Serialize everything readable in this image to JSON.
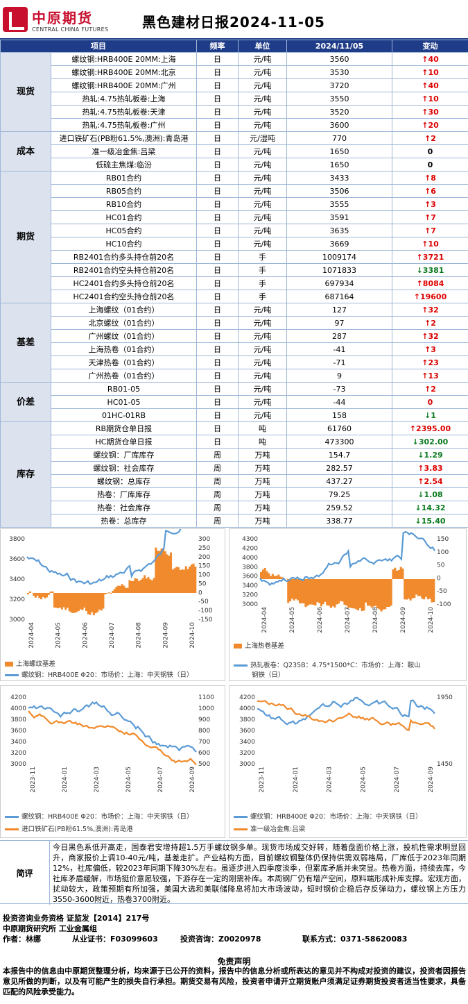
{
  "header": {
    "logo_cn": "中原期货",
    "logo_en": "CENTRAL CHINA FUTURES",
    "title": "黑色建材日报2024-11-05"
  },
  "table": {
    "headers": [
      "项目",
      "频率",
      "单位",
      "2024/11/05",
      "变动"
    ],
    "groups": [
      {
        "category": "现货",
        "rows": [
          {
            "item": "螺纹钢:HRB400E 20MM:上海",
            "freq": "日",
            "unit": "元/吨",
            "value": "3560",
            "change": "40",
            "dir": "up"
          },
          {
            "item": "螺纹钢:HRB400E 20MM:北京",
            "freq": "日",
            "unit": "元/吨",
            "value": "3530",
            "change": "10",
            "dir": "up"
          },
          {
            "item": "螺纹钢:HRB400E 20MM:广州",
            "freq": "日",
            "unit": "元/吨",
            "value": "3720",
            "change": "40",
            "dir": "up"
          },
          {
            "item": "热轧:4.75热轧板卷:上海",
            "freq": "日",
            "unit": "元/吨",
            "value": "3550",
            "change": "10",
            "dir": "up"
          },
          {
            "item": "热轧:4.75热轧板卷:天津",
            "freq": "日",
            "unit": "元/吨",
            "value": "3520",
            "change": "30",
            "dir": "up"
          },
          {
            "item": "热轧:4.75热轧板卷:广州",
            "freq": "日",
            "unit": "元/吨",
            "value": "3600",
            "change": "20",
            "dir": "up"
          }
        ]
      },
      {
        "category": "成本",
        "rows": [
          {
            "item": "进口铁矿石(PB粉61.5%,澳洲):青岛港",
            "freq": "日",
            "unit": "元/湿吨",
            "value": "770",
            "change": "2",
            "dir": "up"
          },
          {
            "item": "准一级冶金焦:吕梁",
            "freq": "日",
            "unit": "元/吨",
            "value": "1650",
            "change": "0",
            "dir": "flat"
          },
          {
            "item": "低硫主焦煤:临汾",
            "freq": "日",
            "unit": "元/吨",
            "value": "1650",
            "change": "0",
            "dir": "flat"
          }
        ]
      },
      {
        "category": "期货",
        "rows": [
          {
            "item": "RB01合约",
            "freq": "日",
            "unit": "元/吨",
            "value": "3433",
            "change": "8",
            "dir": "up"
          },
          {
            "item": "RB05合约",
            "freq": "日",
            "unit": "元/吨",
            "value": "3506",
            "change": "6",
            "dir": "up"
          },
          {
            "item": "RB10合约",
            "freq": "日",
            "unit": "元/吨",
            "value": "3555",
            "change": "3",
            "dir": "up"
          },
          {
            "item": "HC01合约",
            "freq": "日",
            "unit": "元/吨",
            "value": "3591",
            "change": "7",
            "dir": "up"
          },
          {
            "item": "HC05合约",
            "freq": "日",
            "unit": "元/吨",
            "value": "3635",
            "change": "7",
            "dir": "up"
          },
          {
            "item": "HC10合约",
            "freq": "日",
            "unit": "元/吨",
            "value": "3669",
            "change": "10",
            "dir": "up"
          },
          {
            "item": "RB2401合约多头持仓前20名",
            "freq": "日",
            "unit": "手",
            "value": "1009174",
            "change": "3721",
            "dir": "up"
          },
          {
            "item": "RB2401合约空头持仓前20名",
            "freq": "日",
            "unit": "手",
            "value": "1071833",
            "change": "3381",
            "dir": "down"
          },
          {
            "item": "HC2401合约多头持仓前20名",
            "freq": "日",
            "unit": "手",
            "value": "697934",
            "change": "8084",
            "dir": "up"
          },
          {
            "item": "HC2401合约空头持仓前20名",
            "freq": "日",
            "unit": "手",
            "value": "687164",
            "change": "19600",
            "dir": "up"
          }
        ]
      },
      {
        "category": "基差",
        "rows": [
          {
            "item": "上海螺纹（01合约）",
            "freq": "日",
            "unit": "元/吨",
            "value": "127",
            "change": "32",
            "dir": "up"
          },
          {
            "item": "北京螺纹（01合约）",
            "freq": "日",
            "unit": "元/吨",
            "value": "97",
            "change": "2",
            "dir": "up"
          },
          {
            "item": "广州螺纹（01合约）",
            "freq": "日",
            "unit": "元/吨",
            "value": "287",
            "change": "32",
            "dir": "up"
          },
          {
            "item": "上海热卷（01合约）",
            "freq": "日",
            "unit": "元/吨",
            "value": "-41",
            "change": "3",
            "dir": "up"
          },
          {
            "item": "天津热卷（01合约）",
            "freq": "日",
            "unit": "元/吨",
            "value": "-71",
            "change": "23",
            "dir": "up"
          },
          {
            "item": "广州热卷（01合约）",
            "freq": "日",
            "unit": "元/吨",
            "value": "9",
            "change": "13",
            "dir": "up"
          }
        ]
      },
      {
        "category": "价差",
        "rows": [
          {
            "item": "RB01-05",
            "freq": "日",
            "unit": "元/吨",
            "value": "-73",
            "change": "2",
            "dir": "up"
          },
          {
            "item": "HC01-05",
            "freq": "日",
            "unit": "元/吨",
            "value": "-44",
            "change": "0",
            "dir": "flatred"
          },
          {
            "item": "01HC-01RB",
            "freq": "日",
            "unit": "元/吨",
            "value": "158",
            "change": "1",
            "dir": "down"
          }
        ]
      },
      {
        "category": "库存",
        "rows": [
          {
            "item": "RB期货仓单日报",
            "freq": "日",
            "unit": "吨",
            "value": "61760",
            "change": "2395.00",
            "dir": "up"
          },
          {
            "item": "HC期货仓单日报",
            "freq": "日",
            "unit": "吨",
            "value": "473300",
            "change": "302.00",
            "dir": "down"
          },
          {
            "item": "螺纹钢：厂库库存",
            "freq": "周",
            "unit": "万吨",
            "value": "154.7",
            "change": "1.29",
            "dir": "down"
          },
          {
            "item": "螺纹钢：社会库存",
            "freq": "周",
            "unit": "万吨",
            "value": "282.57",
            "change": "3.83",
            "dir": "up"
          },
          {
            "item": "螺纹钢：总库存",
            "freq": "周",
            "unit": "万吨",
            "value": "437.27",
            "change": "2.54",
            "dir": "up"
          },
          {
            "item": "热卷：厂库库存",
            "freq": "周",
            "unit": "万吨",
            "value": "79.25",
            "change": "1.08",
            "dir": "down"
          },
          {
            "item": "热卷：社会库存",
            "freq": "周",
            "unit": "万吨",
            "value": "259.52",
            "change": "14.32",
            "dir": "down"
          },
          {
            "item": "热卷：总库存",
            "freq": "周",
            "unit": "万吨",
            "value": "338.77",
            "change": "15.40",
            "dir": "down"
          }
        ]
      }
    ]
  },
  "charts": [
    {
      "xticks": [
        "2024-04",
        "2024-05",
        "2024-06",
        "2024-07",
        "2024-08",
        "2024-09",
        "2024-10"
      ],
      "yleft": [
        "3800",
        "3600",
        "3400",
        "3200",
        "3000"
      ],
      "yright": [
        "300",
        "250",
        "200",
        "150",
        "100",
        "50",
        "0",
        "-50",
        "-100",
        "-150"
      ],
      "legend1": "上海螺纹基差",
      "legend2": "螺纹钢：HRB400E  Φ20：市场价：上海：中天钢铁（日）",
      "colors": {
        "line": "#5b9bd5",
        "bar": "#f08a2c"
      }
    },
    {
      "xticks": [
        "2024-04",
        "2024-05",
        "2024-06",
        "2024-07",
        "2024-08",
        "2024-09",
        "2024-10"
      ],
      "yleft": [
        "4300",
        "4200",
        "4000",
        "3800",
        "3600",
        "3400",
        "3200",
        "3000"
      ],
      "yright": [
        "150",
        "100",
        "50",
        "0",
        "-50",
        "-100"
      ],
      "legend1": "上海热卷基差",
      "legend2": "热轧板卷：Q235B：4.75*1500*C：市场价：上海：鞍山",
      "legend2b": "钢铁（日）",
      "colors": {
        "line": "#5b9bd5",
        "bar": "#f08a2c"
      }
    },
    {
      "xticks": [
        "2023-11",
        "2024-01",
        "2024-03",
        "2024-05",
        "2024-07",
        "2024-09"
      ],
      "yleft": [
        "4200",
        "4000",
        "3800",
        "3600",
        "3400",
        "3200",
        "3000"
      ],
      "yright": [
        "1100",
        "1000",
        "900",
        "800",
        "700",
        "600",
        "500"
      ],
      "legend1": "螺纹钢：HRB400E  Φ20：市场价：上海：中天钢铁（日）",
      "legend2": "进口铁矿石(PB粉61.5%,澳洲):青岛港",
      "colors": {
        "line": "#5b9bd5",
        "line2": "#f08a2c"
      }
    },
    {
      "xticks": [
        "2023-11",
        "2024-01",
        "2024-03",
        "2024-05",
        "2024-07",
        "2024-09"
      ],
      "yleft": [
        "4200",
        "4000",
        "3800",
        "3600",
        "3400",
        "3200",
        "3000"
      ],
      "yright": [
        "1950",
        "1450"
      ],
      "legend1": "螺纹钢：HRB400E  Φ20：市场价：上海：中天钢铁（日）",
      "legend2": "准一级冶金焦:吕梁",
      "colors": {
        "line": "#5b9bd5",
        "line2": "#f08a2c"
      }
    }
  ],
  "comment": {
    "label": "简评",
    "text": "今日黑色系低开高走，国泰君安增持超1.5万手螺纹钢多单。现货市场成交好转，随着盘面价格上涨，投机性需求明显回升，商家报价上调10-40元/吨，基差走扩。产业结构方面，目前螺纹钢整体仍保持供需双弱格局，厂库低于2023年同期12%，社库偏低，较2023年同期下降30%左右。虽逐步进入四季度淡季，但累库矛盾并未突显。热卷方面，持续去库，今社库矛盾缓解，市场挺价意愿较强，下游存在一定的刚需补库。本周钢厂仍有增产空间，原料端形成补库支撑。宏观方面，扰动较大，政策预期有所加强，美国大选和美联储降息将加大市场波动，短时钢价企稳后存反弹动力，螺纹钢上方压力3550-3600附近，热卷3700附近。"
  },
  "footer": {
    "line1": "投资咨询业务资格    证监发【2014】217号",
    "line2": "中原期货研究所    工业金属组",
    "author": "作者：林娜",
    "cert": "从业证书：F03099603",
    "consult": "投资咨询：Z0020978",
    "contact": "联系方式：0371-58620083"
  },
  "disclaimer": {
    "title": "免责声明",
    "text": "本报告中的信息由中原期货整理分析，均来源于已公开的资料，报告中的信息分析或所表达的意见并不构成对投资的建议，投资者因报告意见所做的判断，以及有可能产生的损失自行承担。期货交易有风险，投资者申请开立期货账户须满足证券期货投资者适当性要求，具备匹配的风险承受能力。"
  }
}
